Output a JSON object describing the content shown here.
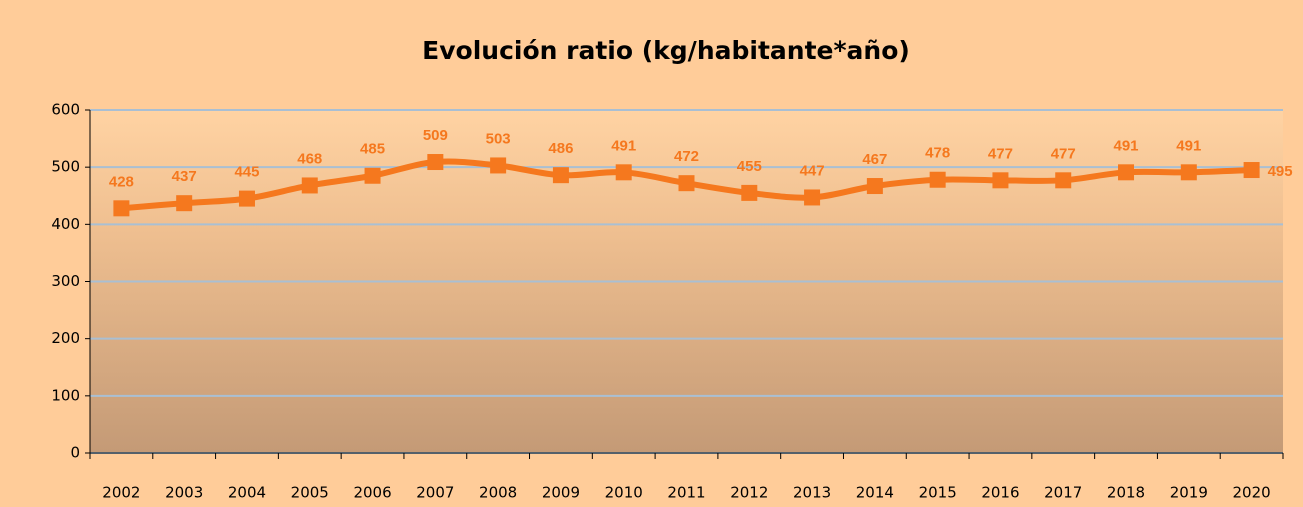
{
  "chart_data": {
    "type": "line",
    "title": "Evolución ratio (kg/habitante*año)",
    "categories": [
      "2002",
      "2003",
      "2004",
      "2005",
      "2006",
      "2007",
      "2008",
      "2009",
      "2010",
      "2011",
      "2012",
      "2013",
      "2014",
      "2015",
      "2016",
      "2017",
      "2018",
      "2019",
      "2020"
    ],
    "values": [
      428,
      437,
      445,
      468,
      485,
      509,
      503,
      486,
      491,
      472,
      455,
      447,
      467,
      478,
      477,
      477,
      491,
      491,
      495
    ],
    "color": "#f5781e",
    "smooth": true,
    "ylim": [
      0,
      600
    ],
    "yticks": [
      0,
      100,
      200,
      300,
      400,
      500,
      600
    ],
    "grid": true
  }
}
